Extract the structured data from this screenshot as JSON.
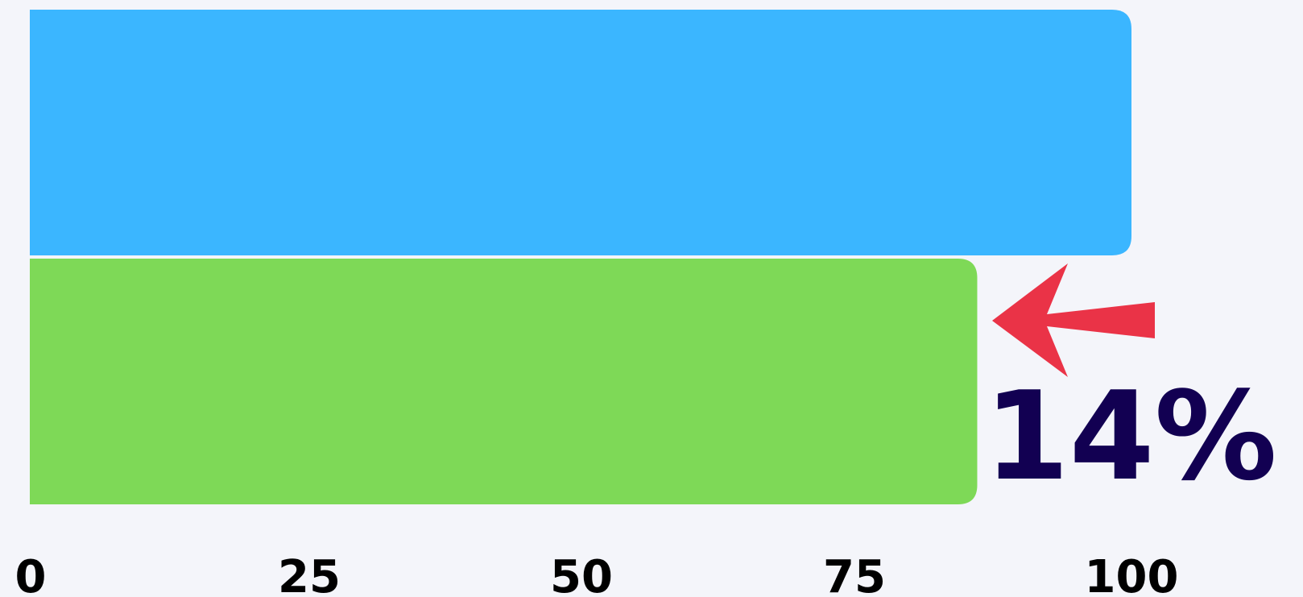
{
  "chart_data": {
    "type": "bar",
    "orientation": "horizontal",
    "categories": [
      "",
      ""
    ],
    "values": [
      100,
      86
    ],
    "colors": [
      "#3bb6ff",
      "#7ed957"
    ],
    "xlim": [
      0,
      100
    ],
    "xticks": [
      "0",
      "25",
      "50",
      "75",
      "100"
    ],
    "title": "",
    "xlabel": "",
    "ylabel": "",
    "grid": false,
    "annotation": {
      "text": "14%",
      "color": "#120052",
      "arrow_color": "#ea3347",
      "arrow_icon": "arrow-left-icon"
    }
  }
}
